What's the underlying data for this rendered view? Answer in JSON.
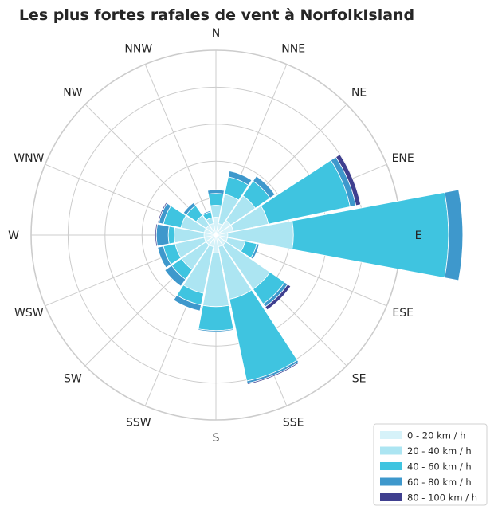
{
  "chart_data": {
    "type": "windrose",
    "title": "Les plus fortes rafales de vent à NorfolkIsland",
    "directions": [
      "N",
      "NNE",
      "NE",
      "ENE",
      "E",
      "ESE",
      "SE",
      "SSE",
      "S",
      "SSW",
      "SW",
      "WSW",
      "W",
      "WNW",
      "NW",
      "NNW"
    ],
    "colors": [
      "#d6f2f9",
      "#ace5f2",
      "#3fc4e0",
      "#3e98cc",
      "#3f3f8f"
    ],
    "series": [
      {
        "name": "0 - 20 km / h",
        "values": [
          1.5,
          1.0,
          1.5,
          1.5,
          1.0,
          1.0,
          1.0,
          1.0,
          1.5,
          1.0,
          1.0,
          1.0,
          1.0,
          1.0,
          1.0,
          1.0
        ]
      },
      {
        "name": "20 - 40 km / h",
        "values": [
          1.0,
          2.5,
          2.5,
          3.0,
          5.5,
          1.5,
          4.5,
          4.5,
          4.5,
          4.0,
          2.5,
          2.5,
          2.5,
          2.0,
          1.0,
          0.5
        ]
      },
      {
        "name": "40 - 60 km / h",
        "values": [
          1.0,
          1.5,
          1.5,
          7.0,
          13.0,
          1.0,
          1.5,
          7.0,
          2.0,
          1.0,
          1.0,
          1.0,
          0.5,
          1.5,
          1.0,
          0.5
        ]
      },
      {
        "name": "60 - 80 km / h",
        "values": [
          0.3,
          0.5,
          0.5,
          0.5,
          1.2,
          0.2,
          0.3,
          0.2,
          0.1,
          0.5,
          0.7,
          0.5,
          1.0,
          0.4,
          0.3,
          0.1
        ]
      },
      {
        "name": "80 - 100 km / h",
        "values": [
          0,
          0,
          0,
          0.4,
          0,
          0,
          0.3,
          0.1,
          0,
          0,
          0,
          0,
          0.1,
          0.1,
          0,
          0
        ]
      }
    ],
    "rmax": 15.5,
    "rings": [
      3.1,
      6.2,
      9.3,
      12.4,
      15.5
    ],
    "grid": true,
    "legend_position": "bottom-right"
  }
}
